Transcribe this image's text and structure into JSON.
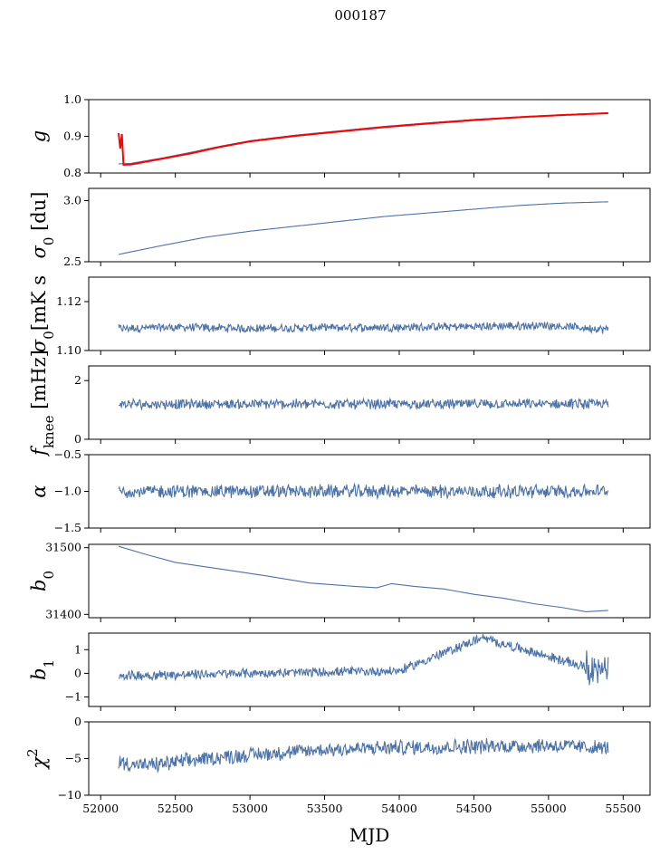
{
  "figure": {
    "title": "000187",
    "xlabel": "MJD",
    "xlim": [
      51920,
      55680
    ],
    "xticks": [
      52000,
      52500,
      53000,
      53500,
      54000,
      54500,
      55000,
      55500
    ],
    "x_start": 52120,
    "x_end": 55400,
    "colors": {
      "series": "#4c72a8",
      "overlay": "#ff0000",
      "axis": "#000000"
    }
  },
  "chart_data": [
    {
      "type": "line",
      "id": "g",
      "ylabel_main": "g",
      "ylabel_sub": "",
      "ylim": [
        0.8,
        1.0
      ],
      "yticks": [
        0.8,
        0.9,
        1.0
      ],
      "ytick_labels": [
        "0.8",
        "0.9",
        "1.0"
      ],
      "series": [
        {
          "name": "g (blue)",
          "color": "#4c72a8",
          "x": [
            52120,
            52200,
            52400,
            52600,
            52800,
            53000,
            53300,
            53600,
            53900,
            54200,
            54500,
            54800,
            55100,
            55400
          ],
          "values": [
            0.825,
            0.826,
            0.84,
            0.856,
            0.873,
            0.888,
            0.903,
            0.915,
            0.927,
            0.937,
            0.946,
            0.953,
            0.959,
            0.964
          ]
        },
        {
          "name": "g (red)",
          "color": "#ff0000",
          "x": [
            52120,
            52200,
            52400,
            52600,
            52800,
            53000,
            53300,
            53600,
            53900,
            54200,
            54500,
            54800,
            55100,
            55400
          ],
          "values": [
            0.822,
            0.823,
            0.838,
            0.853,
            0.871,
            0.886,
            0.901,
            0.913,
            0.925,
            0.935,
            0.944,
            0.952,
            0.958,
            0.963
          ]
        }
      ]
    },
    {
      "type": "line",
      "id": "sigma0_du",
      "ylabel_main": "σ",
      "ylabel_sub": "0",
      "ylabel_tail": " [du]",
      "ylim": [
        2.5,
        3.1
      ],
      "yticks": [
        2.5,
        3.0
      ],
      "ytick_labels": [
        "2.5",
        "3.0"
      ],
      "series": [
        {
          "name": "sigma0",
          "color": "#4c72a8",
          "x": [
            52120,
            52400,
            52700,
            53000,
            53300,
            53600,
            53900,
            54200,
            54500,
            54800,
            55100,
            55400
          ],
          "values": [
            2.56,
            2.63,
            2.7,
            2.75,
            2.79,
            2.83,
            2.87,
            2.9,
            2.93,
            2.96,
            2.98,
            2.99
          ]
        }
      ]
    },
    {
      "type": "line",
      "id": "sigma0_mK",
      "ylabel_main": "σ",
      "ylabel_sub": "0",
      "ylabel_tail": "[mK s",
      "ylim": [
        1.1,
        1.13
      ],
      "yticks": [
        1.1,
        1.12
      ],
      "ytick_labels": [
        "1.10",
        "1.12"
      ],
      "noise_level": 1.1095,
      "noise_amplitude": 0.0015,
      "series": [
        {
          "name": "sigma0 mK",
          "color": "#4c72a8",
          "x": [
            52120,
            52500,
            53000,
            53500,
            54000,
            54500,
            55000,
            55400
          ],
          "values": [
            1.109,
            1.1095,
            1.109,
            1.1093,
            1.1095,
            1.1098,
            1.1103,
            1.1085
          ]
        }
      ]
    },
    {
      "type": "line",
      "id": "fknee",
      "ylabel_main": "f",
      "ylabel_sub": "knee",
      "ylabel_tail": " [mHz]",
      "ylim": [
        0,
        2.5
      ],
      "yticks": [
        0,
        2
      ],
      "ytick_labels": [
        "0",
        "2"
      ],
      "noise_level": 1.2,
      "noise_amplitude": 0.15,
      "series": [
        {
          "name": "fknee",
          "color": "#4c72a8",
          "x": [
            52120,
            53000,
            54000,
            55400
          ],
          "values": [
            1.2,
            1.2,
            1.2,
            1.2
          ]
        }
      ]
    },
    {
      "type": "line",
      "id": "alpha",
      "ylabel_main": "α",
      "ylabel_sub": "",
      "ylim": [
        -1.5,
        -0.5
      ],
      "yticks": [
        -1.5,
        -1.0,
        -0.5
      ],
      "ytick_labels": [
        "−1.5",
        "−1.0",
        "−0.5"
      ],
      "noise_level": -1.0,
      "noise_amplitude": 0.08,
      "series": [
        {
          "name": "alpha",
          "color": "#4c72a8",
          "x": [
            52120,
            53000,
            54000,
            55400
          ],
          "values": [
            -1.0,
            -1.0,
            -1.0,
            -1.0
          ]
        }
      ]
    },
    {
      "type": "line",
      "id": "b0",
      "ylabel_main": "b",
      "ylabel_sub": "0",
      "ylim": [
        31395,
        31505
      ],
      "yticks": [
        31400,
        31500
      ],
      "ytick_labels": [
        "31400",
        "31500"
      ],
      "series": [
        {
          "name": "b0",
          "color": "#4c72a8",
          "x": [
            52120,
            52300,
            52500,
            52800,
            53100,
            53400,
            53700,
            53850,
            53950,
            54100,
            54300,
            54500,
            54700,
            54900,
            55100,
            55250,
            55400
          ],
          "values": [
            31502,
            31490,
            31478,
            31468,
            31458,
            31447,
            31442,
            31440,
            31446,
            31442,
            31438,
            31430,
            31424,
            31416,
            31410,
            31404,
            31406
          ]
        }
      ]
    },
    {
      "type": "line",
      "id": "b1",
      "ylabel_main": "b",
      "ylabel_sub": "1",
      "ylim": [
        -1.4,
        1.7
      ],
      "yticks": [
        -1,
        0,
        1
      ],
      "ytick_labels": [
        "−1",
        "0",
        "1"
      ],
      "noise_level": 0.0,
      "noise_amplitude": 0.18,
      "series": [
        {
          "name": "b1",
          "color": "#4c72a8",
          "x": [
            52120,
            53000,
            54000,
            54550,
            55400
          ],
          "values": [
            -0.1,
            0.0,
            0.1,
            1.5,
            0.0
          ]
        }
      ]
    },
    {
      "type": "line",
      "id": "chi2",
      "ylabel_main": "χ",
      "ylabel_sup": "2",
      "ylim": [
        -10,
        0
      ],
      "yticks": [
        -10,
        -5,
        0
      ],
      "ytick_labels": [
        "−10",
        "−5",
        "0"
      ],
      "noise_level": -4.0,
      "noise_amplitude": 0.9,
      "series": [
        {
          "name": "chi2",
          "color": "#4c72a8",
          "x": [
            52120,
            52300,
            52800,
            53500,
            54000,
            55000,
            55400
          ],
          "values": [
            -5.5,
            -6.0,
            -4.8,
            -3.8,
            -3.5,
            -3.2,
            -3.6
          ]
        }
      ]
    }
  ]
}
